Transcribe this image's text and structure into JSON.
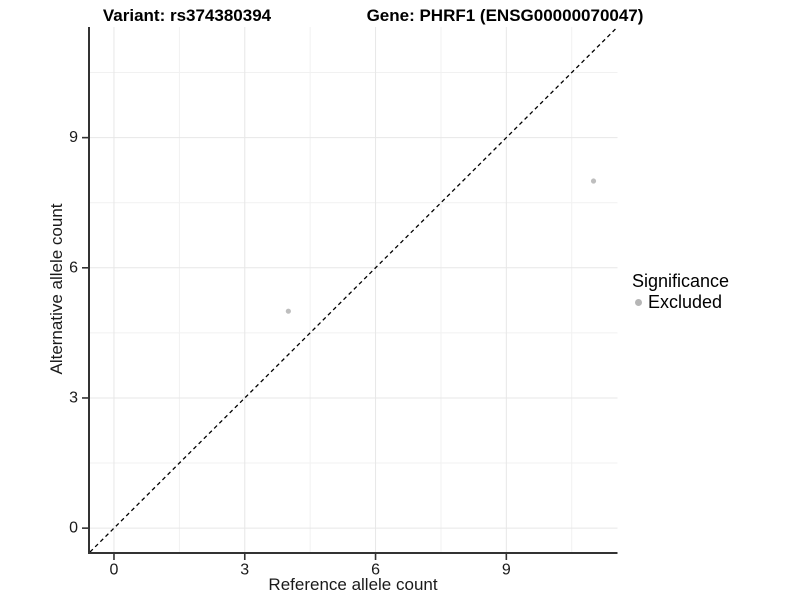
{
  "titles": {
    "left": "Variant: rs374380394",
    "right": "Gene: PHRF1 (ENSG00000070047)"
  },
  "legend": {
    "title": "Significance",
    "entries": [
      {
        "label": "Excluded",
        "color": "#b6b6b6"
      }
    ]
  },
  "chart_data": {
    "type": "scatter",
    "title": "Variant: rs374380394 | Gene: PHRF1 (ENSG00000070047)",
    "xlabel": "Reference allele count",
    "ylabel": "Alternative allele count",
    "xlim": [
      -0.55,
      11.55
    ],
    "ylim": [
      -0.55,
      11.55
    ],
    "xticks": [
      0,
      3,
      6,
      9
    ],
    "yticks": [
      0,
      3,
      6,
      9
    ],
    "minor_ticks": [
      1.5,
      4.5,
      7.5,
      10.5
    ],
    "grid": "major+minor",
    "legend_position": "right",
    "series": [
      {
        "name": "Excluded",
        "color": "#bebebe",
        "points": [
          {
            "x": 4,
            "y": 5
          },
          {
            "x": 11,
            "y": 8
          }
        ]
      }
    ],
    "reference_line": {
      "type": "identity y=x",
      "style": "dashed",
      "color": "#000000"
    },
    "colors": {
      "background": "#ffffff",
      "grid_major": "#e7e7e7",
      "grid_minor": "#f1f1f1",
      "axis_line": "#333333",
      "tick_text": "#1a1a1a"
    }
  }
}
